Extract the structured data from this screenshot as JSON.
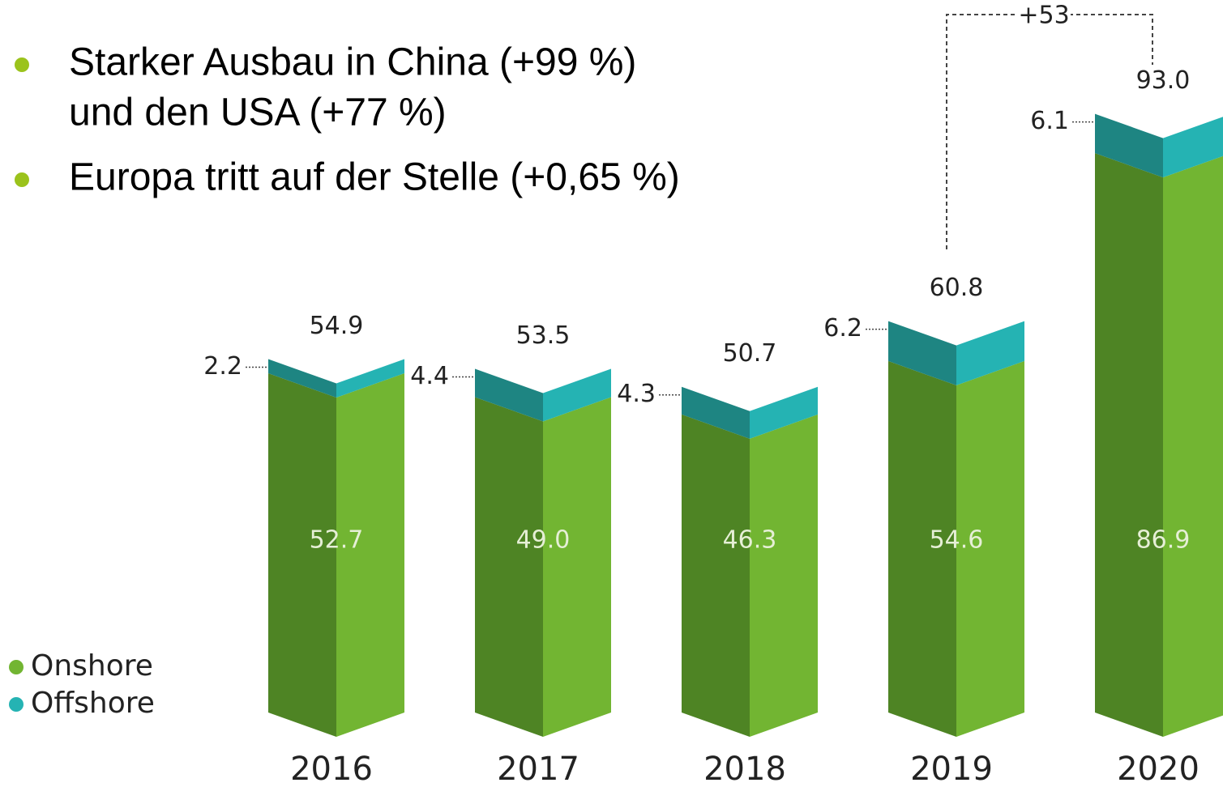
{
  "bullets": [
    [
      "Starker Ausbau in China (+99 %)",
      "und den USA (+77 %)"
    ],
    [
      "Europa tritt auf der Stelle (+0,65 %)"
    ]
  ],
  "chart_data": {
    "type": "stacked-bar",
    "categories": [
      "2016",
      "2017",
      "2018",
      "2019",
      "2020"
    ],
    "series": [
      {
        "name": "Onshore",
        "color": "#72b532",
        "values": [
          52.7,
          49.0,
          46.3,
          54.6,
          86.9
        ],
        "value_labels": [
          "52.7",
          "49.0",
          "46.3",
          "54.6",
          "86.9"
        ]
      },
      {
        "name": "Offshore",
        "color": "#25b3b3",
        "values": [
          2.2,
          4.4,
          4.3,
          6.2,
          6.1
        ]
      }
    ],
    "totals": [
      "54.9",
      "53.5",
      "50.7",
      "60.8",
      "93.0"
    ],
    "annotation": "+53"
  }
}
